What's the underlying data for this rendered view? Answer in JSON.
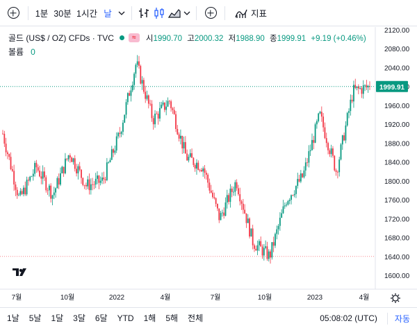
{
  "toolbar": {
    "intervals": [
      "1분",
      "30분",
      "1시간"
    ],
    "active_interval": "날",
    "indicators_label": "지표"
  },
  "legend": {
    "symbol_title": "골드 (US$ / OZ) CFDs · TVC",
    "open_label": "시",
    "open": "1990.70",
    "high_label": "고",
    "high": "2000.32",
    "low_label": "저",
    "low": "1988.90",
    "close_label": "종",
    "close": "1999.91",
    "change": "+9.19 (+0.46%)",
    "volume_label": "볼륨",
    "volume_value": "0"
  },
  "price_axis": {
    "labels": [
      "2120.00",
      "2080.00",
      "2040.00",
      "2000.00",
      "1960.00",
      "1920.00",
      "1880.00",
      "1840.00",
      "1800.00",
      "1760.00",
      "1720.00",
      "1680.00",
      "1640.00",
      "1600.00"
    ],
    "current_price": "1999.91"
  },
  "time_axis": {
    "labels": [
      "7월",
      "10월",
      "2022",
      "4월",
      "7월",
      "10월",
      "2023",
      "4월"
    ]
  },
  "bottom": {
    "ranges": [
      "1날",
      "5날",
      "1달",
      "3달",
      "6달",
      "YTD",
      "1해",
      "5해",
      "전체"
    ],
    "clock": "05:08:02 (UTC)",
    "auto_label": "자동"
  },
  "chart_data": {
    "type": "candlestick",
    "title": "골드 (US$ / OZ) CFDs · TVC",
    "ylim": [
      1600,
      2120
    ],
    "x_labels": [
      "7월",
      "10월",
      "2022",
      "4월",
      "7월",
      "10월",
      "2023",
      "4월"
    ],
    "last_close": 1999.91,
    "key_points": [
      {
        "date": "2021-06",
        "close": 1900
      },
      {
        "date": "2021-08",
        "close": 1760
      },
      {
        "date": "2021-09",
        "close": 1830
      },
      {
        "date": "2021-10",
        "close": 1770
      },
      {
        "date": "2021-11",
        "close": 1860
      },
      {
        "date": "2021-12",
        "close": 1790
      },
      {
        "date": "2022-01",
        "close": 1800
      },
      {
        "date": "2022-02",
        "close": 1900
      },
      {
        "date": "2022-03",
        "close": 2050
      },
      {
        "date": "2022-03-15",
        "close": 1930
      },
      {
        "date": "2022-04",
        "close": 1970
      },
      {
        "date": "2022-05",
        "close": 1850
      },
      {
        "date": "2022-06",
        "close": 1830
      },
      {
        "date": "2022-07",
        "close": 1720
      },
      {
        "date": "2022-08",
        "close": 1800
      },
      {
        "date": "2022-09",
        "close": 1670
      },
      {
        "date": "2022-10",
        "close": 1640
      },
      {
        "date": "2022-11",
        "close": 1760
      },
      {
        "date": "2022-12",
        "close": 1810
      },
      {
        "date": "2023-01",
        "close": 1940
      },
      {
        "date": "2023-02",
        "close": 1820
      },
      {
        "date": "2023-03",
        "close": 1990
      },
      {
        "date": "2023-04",
        "close": 2000
      }
    ]
  }
}
